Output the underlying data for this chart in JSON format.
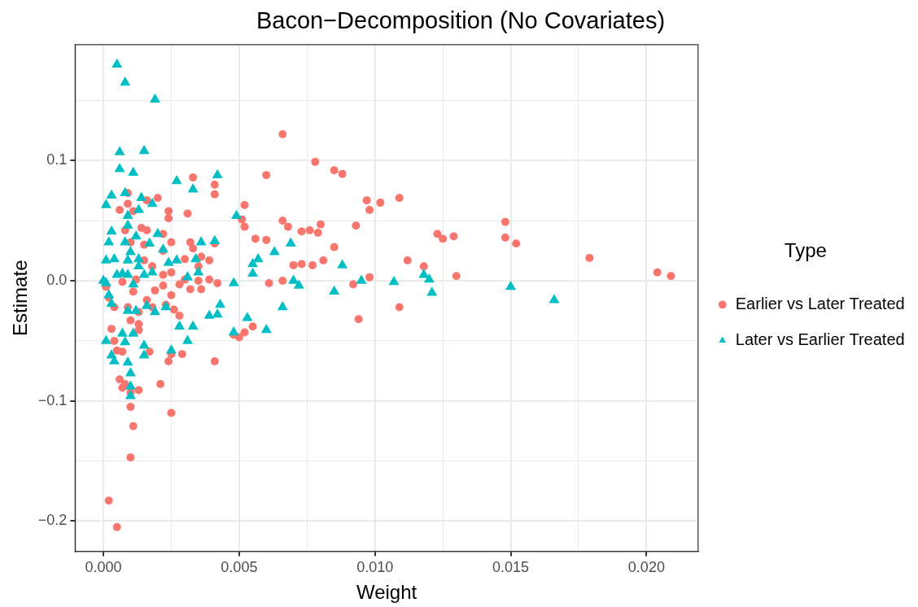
{
  "chart_data": {
    "type": "scatter",
    "title": "Bacon−Decomposition (No Covariates)",
    "xlabel": "Weight",
    "ylabel": "Estimate",
    "legend_title": "Type",
    "legend": "right",
    "grid": true,
    "xlim": [
      -0.00104,
      0.0219
    ],
    "ylim": [
      -0.2252,
      0.1966
    ],
    "xticks": [
      {
        "value": 0,
        "label": "0.000"
      },
      {
        "value": 0.0025,
        "label": null
      },
      {
        "value": 0.005,
        "label": "0.005"
      },
      {
        "value": 0.0075,
        "label": null
      },
      {
        "value": 0.01,
        "label": "0.010"
      },
      {
        "value": 0.0125,
        "label": null
      },
      {
        "value": 0.015,
        "label": "0.015"
      },
      {
        "value": 0.0175,
        "label": null
      },
      {
        "value": 0.02,
        "label": "0.020"
      }
    ],
    "yticks": [
      {
        "value": -0.2,
        "label": "−0.2"
      },
      {
        "value": -0.15,
        "label": null
      },
      {
        "value": -0.1,
        "label": "−0.1"
      },
      {
        "value": -0.05,
        "label": null
      },
      {
        "value": 0,
        "label": "0.0"
      },
      {
        "value": 0.05,
        "label": null
      },
      {
        "value": 0.1,
        "label": "0.1"
      },
      {
        "value": 0.15,
        "label": null
      }
    ],
    "series": [
      {
        "name": "Earlier vs Later Treated",
        "color": "#f8766d",
        "marker": "circle",
        "x": [
          0.0066,
          0.0078,
          0.0085,
          0.0088,
          0.006,
          0.0033,
          0.0041,
          0.0041,
          0.0097,
          0.0102,
          0.0109,
          0.0098,
          0.0052,
          0.0148,
          0.0066,
          0.0068,
          0.0051,
          0.0052,
          0.008,
          0.0073,
          0.0076,
          0.0079,
          0.0093,
          0.0123,
          0.0125,
          0.0129,
          0.0148,
          0.0152,
          0.0179,
          0.0112,
          0.0118,
          0.0204,
          0.0209,
          0.013,
          0.0098,
          0.0092,
          0.0109,
          0.0094,
          0.0056,
          0.006,
          0.0085,
          0.0081,
          0.0077,
          0.0073,
          0.007,
          0.0061,
          0.0066,
          0.0055,
          0.0052,
          0.005,
          0.0048,
          0.0041,
          0.0025,
          0.0021,
          0.0013,
          0.001,
          0.001,
          0.0011,
          0.001,
          0.0002,
          0.0005,
          0.0008,
          0.0007,
          0.0006,
          0.0003,
          0.0004,
          0.0007,
          0.0005,
          0.0017,
          0.0025,
          0.0029,
          0.0024,
          0.0013,
          0.0013,
          0.001,
          0.0007,
          0.0012,
          0.0011,
          0.0016,
          0.0019,
          0.0022,
          0.0025,
          0.0028,
          0.0032,
          0.0035,
          0.0039,
          0.0042,
          0.003,
          0.0025,
          0.0022,
          0.0018,
          0.0015,
          0.0022,
          0.0025,
          0.003,
          0.0036,
          0.0041,
          0.0032,
          0.0022,
          0.0016,
          0.0014,
          0.0015,
          0.001,
          0.0008,
          0.0006,
          0.0009,
          0.0011,
          0.0009,
          0.0016,
          0.002,
          0.0024,
          0.0024,
          0.0031,
          0.0004,
          0.0009,
          0.0013,
          0.0018,
          0.0023,
          0.0026,
          0.0028,
          0.0036,
          0.0035,
          0.0039,
          0.0033,
          0.0001,
          0.0002
        ],
        "values": [
          0.122,
          0.099,
          0.092,
          0.089,
          0.088,
          0.086,
          0.08,
          0.072,
          0.067,
          0.065,
          0.069,
          0.059,
          0.063,
          0.049,
          0.05,
          0.045,
          0.051,
          0.045,
          0.047,
          0.041,
          0.042,
          0.04,
          0.046,
          0.039,
          0.035,
          0.037,
          0.036,
          0.031,
          0.019,
          0.017,
          0.012,
          0.007,
          0.004,
          0.004,
          0.003,
          -0.003,
          -0.022,
          -0.032,
          0.035,
          0.034,
          0.028,
          0.017,
          0.013,
          0.014,
          0.013,
          -0.002,
          0,
          -0.038,
          -0.043,
          -0.047,
          -0.045,
          -0.067,
          -0.11,
          -0.086,
          -0.091,
          -0.093,
          -0.105,
          -0.121,
          -0.147,
          -0.183,
          -0.205,
          -0.086,
          -0.089,
          -0.082,
          -0.04,
          -0.05,
          -0.059,
          -0.058,
          -0.059,
          -0.061,
          -0.061,
          -0.067,
          -0.036,
          -0.041,
          -0.033,
          -0.001,
          0.001,
          -0.009,
          -0.016,
          -0.008,
          -0.004,
          -0.012,
          -0.003,
          -0.007,
          0,
          0.001,
          -0.002,
          0.001,
          0.007,
          0.005,
          0.012,
          0.017,
          0.025,
          0.032,
          0.018,
          0.02,
          0.031,
          0.032,
          0.039,
          0.042,
          0.044,
          0.03,
          0.032,
          0.042,
          0.059,
          0.064,
          0.058,
          0.073,
          0.067,
          0.069,
          0.058,
          0.052,
          0.056,
          -0.022,
          -0.022,
          -0.026,
          -0.022,
          -0.02,
          -0.024,
          -0.029,
          -0.007,
          0.012,
          0.017,
          0.027,
          -0.005,
          -0.014
        ]
      },
      {
        "name": "Later vs Earlier Treated",
        "color": "#00bfc4",
        "marker": "triangle",
        "x": [
          0.0005,
          0.0008,
          0.0019,
          0.0006,
          0.0015,
          0.0006,
          0.0011,
          0.0042,
          0.0027,
          0.0033,
          0.0003,
          0.0008,
          0.0014,
          0.0001,
          0.0018,
          0.0013,
          0.0009,
          0.0049,
          0.0003,
          0.0008,
          0.0017,
          0.0012,
          0.0022,
          0.0036,
          0.0041,
          0.0069,
          0.0063,
          0.0057,
          0.0055,
          0.0055,
          0.0088,
          0.007,
          0.0072,
          0.0085,
          0.0095,
          0.0107,
          0.0118,
          0.012,
          0.0121,
          0.015,
          0.0166,
          0.0048,
          0.0066,
          0.0053,
          0.006,
          0.0048,
          0.0042,
          0.0043,
          0.0039,
          0.0033,
          0.0028,
          0.0025,
          0.0031,
          0.0015,
          0.0009,
          0.0003,
          0.0004,
          0.0001,
          0.001,
          0.001,
          0.001,
          0.0008,
          0.0011,
          0.0015,
          0.0007,
          0.0009,
          0.0012,
          0.0016,
          0.0019,
          0.0023,
          0.0001,
          0,
          0.0002,
          0.0003,
          0.0005,
          0.0007,
          0.0009,
          0.0011,
          0.0013,
          0.0015,
          0.0018,
          0.0004,
          0.0009,
          0.001,
          0.0013,
          0.0001,
          0.0027,
          0.0024,
          0.0031,
          0.0035,
          0.0002,
          0.0009,
          0.002,
          0.0034
        ],
        "values": [
          0.18,
          0.165,
          0.151,
          0.107,
          0.108,
          0.093,
          0.09,
          0.088,
          0.083,
          0.076,
          0.071,
          0.073,
          0.069,
          0.063,
          0.064,
          0.059,
          0.054,
          0.054,
          0.041,
          0.032,
          0.031,
          0.037,
          0.026,
          0.032,
          0.033,
          0.031,
          0.024,
          0.018,
          0.014,
          0.006,
          0.013,
          0,
          -0.004,
          -0.009,
          0,
          -0.001,
          0.005,
          0.001,
          -0.01,
          -0.005,
          -0.016,
          -0.002,
          -0.022,
          -0.031,
          -0.041,
          -0.043,
          -0.028,
          -0.02,
          -0.029,
          -0.038,
          -0.038,
          -0.058,
          -0.05,
          -0.062,
          -0.068,
          -0.062,
          -0.067,
          -0.05,
          -0.077,
          -0.096,
          -0.088,
          -0.051,
          -0.044,
          -0.054,
          -0.044,
          -0.025,
          -0.025,
          -0.021,
          -0.026,
          -0.022,
          -0.002,
          0,
          -0.012,
          -0.019,
          0.005,
          0.006,
          0.005,
          -0.003,
          0.012,
          0.005,
          0.007,
          0.018,
          0.017,
          0.024,
          0.018,
          0.017,
          0.017,
          0.015,
          0.003,
          0.007,
          0.032,
          0.046,
          0.039,
          0.018
        ]
      }
    ]
  }
}
